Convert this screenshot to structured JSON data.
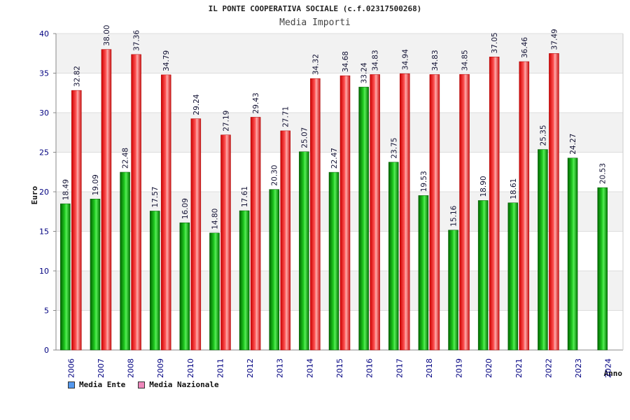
{
  "chart_data": {
    "type": "bar",
    "title": "IL PONTE COOPERATIVA SOCIALE (c.f.02317500268)",
    "subtitle": "Media Importi",
    "ylabel": "Euro",
    "xlabel": "Anno",
    "ylim": [
      0,
      40
    ],
    "yticks": [
      0,
      5,
      10,
      15,
      20,
      25,
      30,
      35,
      40
    ],
    "categories": [
      "2006",
      "2007",
      "2008",
      "2009",
      "2010",
      "2011",
      "2012",
      "2013",
      "2014",
      "2015",
      "2016",
      "2017",
      "2018",
      "2019",
      "2020",
      "2021",
      "2022",
      "2023",
      "2024"
    ],
    "series": [
      {
        "name": "Media Ente",
        "color": "#00aa00",
        "legend_color": "#5599ee",
        "values": [
          18.49,
          19.09,
          22.48,
          17.57,
          16.09,
          14.8,
          17.61,
          20.3,
          25.07,
          22.47,
          33.24,
          23.75,
          19.53,
          15.16,
          18.9,
          18.61,
          25.35,
          24.27,
          20.53
        ],
        "labels": [
          "18.49",
          "19.09",
          "22.48",
          "17.57",
          "16.09",
          "14.80",
          "17.61",
          "20.30",
          "25.07",
          "22.47",
          "33.24",
          "23.75",
          "19.53",
          "15.16",
          "18.90",
          "18.61",
          "25.35",
          "24.27",
          "20.53"
        ]
      },
      {
        "name": "Media Nazionale",
        "color": "#ee2222",
        "legend_color": "#ee88bb",
        "values": [
          32.82,
          38.0,
          37.36,
          34.79,
          29.24,
          27.19,
          29.43,
          27.71,
          34.32,
          34.68,
          34.83,
          34.94,
          34.83,
          34.85,
          37.05,
          36.46,
          37.49,
          null,
          null
        ],
        "labels": [
          "32.82",
          "38.00",
          "37.36",
          "34.79",
          "29.24",
          "27.19",
          "29.43",
          "27.71",
          "34.32",
          "34.68",
          "34.83",
          "34.94",
          "34.83",
          "34.85",
          "37.05",
          "36.46",
          "37.49",
          null,
          null
        ]
      }
    ],
    "legend_position": "bottom-left",
    "grid": true
  }
}
